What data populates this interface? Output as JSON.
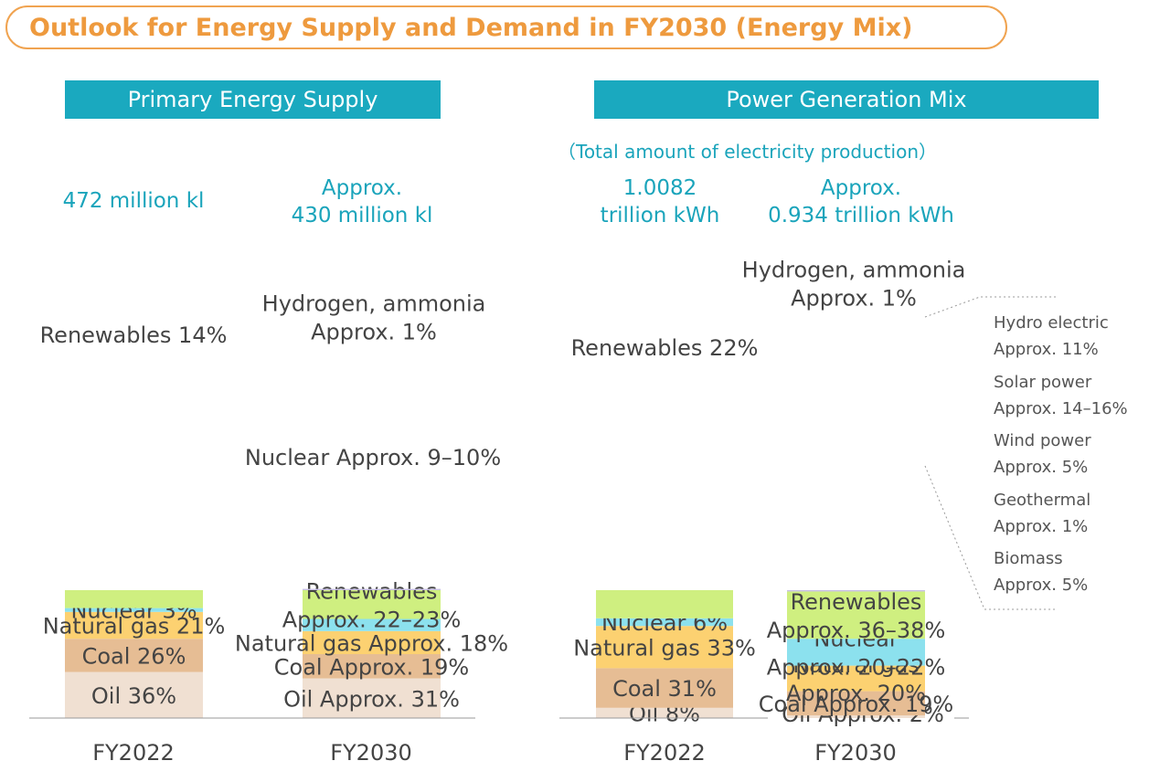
{
  "title": "Outlook for Energy Supply and Demand in FY2030 (Energy Mix)",
  "colors": {
    "title_orange": "#ee9a3e",
    "header_teal": "#1aa9bf",
    "oil": "#f0e0d2",
    "coal": "#e6bd94",
    "natural_gas": "#fcd171",
    "nuclear": "#8ce1ee",
    "renewables": "#cfef80",
    "hydrogen": "#c7bfe3"
  },
  "panels": {
    "primary": {
      "header": "Primary Energy Supply",
      "totals": {
        "fy2022": "472 million kl",
        "fy2030_l1": "Approx.",
        "fy2030_l2": "430 million kl"
      }
    },
    "power": {
      "header": "Power Generation Mix",
      "subtitle": "（Total amount of electricity production）",
      "totals": {
        "fy2022_l1": "1.0082",
        "fy2022_l2": "trillion kWh",
        "fy2030_l1": "Approx.",
        "fy2030_l2": "0.934 trillion kWh"
      }
    }
  },
  "renewables_breakdown": [
    {
      "name": "Hydro electric",
      "value": "Approx. 11%"
    },
    {
      "name": "Solar power",
      "value": "Approx. 14–16%"
    },
    {
      "name": "Wind power",
      "value": "Approx. 5%"
    },
    {
      "name": "Geothermal",
      "value": "Approx. 1%"
    },
    {
      "name": "Biomass",
      "value": "Approx. 5%"
    }
  ],
  "chart_data": [
    {
      "type": "bar",
      "title": "Primary Energy Supply",
      "categories": [
        "FY2022",
        "FY2030"
      ],
      "stacked": true,
      "series": [
        {
          "name": "Oil",
          "values": [
            36,
            31
          ],
          "labels": [
            "Oil 36%",
            "Oil Approx. 31%"
          ]
        },
        {
          "name": "Coal",
          "values": [
            26,
            19
          ],
          "labels": [
            "Coal 26%",
            "Coal Approx. 19%"
          ]
        },
        {
          "name": "Natural gas",
          "values": [
            21,
            18
          ],
          "labels": [
            "Natural gas 21%",
            "Natural gas Approx. 18%"
          ]
        },
        {
          "name": "Nuclear",
          "values": [
            3,
            9.5
          ],
          "labels": [
            "Nuclear 3%",
            "Nuclear Approx. 9–10%"
          ]
        },
        {
          "name": "Renewables",
          "values": [
            14,
            22.5
          ],
          "labels": [
            "Renewables 14%",
            "Renewables\nApprox. 22–23%"
          ]
        },
        {
          "name": "Hydrogen, ammonia",
          "values": [
            0,
            1
          ],
          "labels": [
            "",
            "Hydrogen, ammonia\nApprox. 1%"
          ]
        }
      ]
    },
    {
      "type": "bar",
      "title": "Power Generation Mix",
      "categories": [
        "FY2022",
        "FY2030"
      ],
      "stacked": true,
      "series": [
        {
          "name": "Oil",
          "values": [
            8,
            2
          ],
          "labels": [
            "Oil 8%",
            "Oil Approx. 2%"
          ]
        },
        {
          "name": "Coal",
          "values": [
            31,
            19
          ],
          "labels": [
            "Coal 31%",
            "Coal Approx. 19%"
          ]
        },
        {
          "name": "Natural gas",
          "values": [
            33,
            20
          ],
          "labels": [
            "Natural gas 33%",
            "Natural gas\nApprox. 20%"
          ]
        },
        {
          "name": "Nuclear",
          "values": [
            6,
            21
          ],
          "labels": [
            "Nuclear 6%",
            "Nuclear\nApprox. 20–22%"
          ]
        },
        {
          "name": "Renewables",
          "values": [
            22,
            37
          ],
          "labels": [
            "Renewables 22%",
            "Renewables\nApprox. 36–38%"
          ]
        },
        {
          "name": "Hydrogen, ammonia",
          "values": [
            0,
            1
          ],
          "labels": [
            "",
            "Hydrogen, ammonia\nApprox. 1%"
          ]
        }
      ]
    }
  ]
}
